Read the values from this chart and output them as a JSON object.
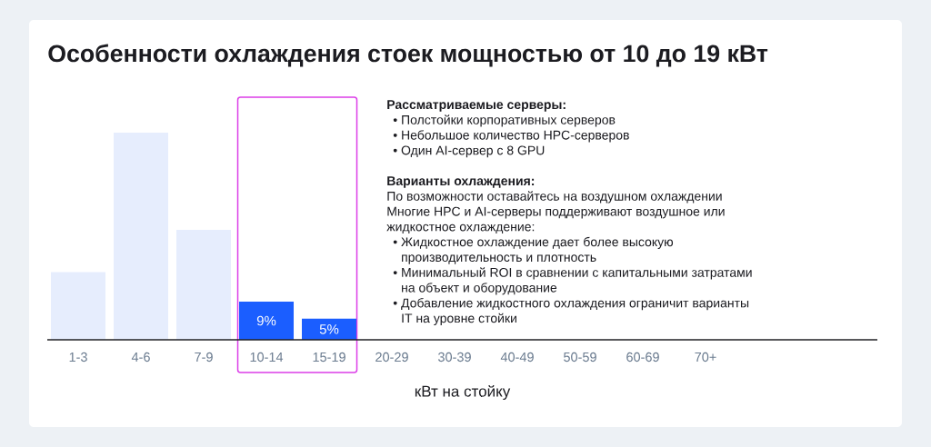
{
  "chart_data": {
    "type": "bar",
    "title": "Особенности охлаждения стоек мощностью от 10 до 19 кВт",
    "xlabel": "кВт на стойку",
    "categories": [
      "1-3",
      "4-6",
      "7-9",
      "10-14",
      "15-19",
      "20-29",
      "30-39",
      "40-49",
      "50-59",
      "60-69",
      "70+"
    ],
    "values": [
      16,
      49,
      26,
      9,
      5,
      null,
      null,
      null,
      null,
      null,
      null
    ],
    "colors": [
      "#e6edfd",
      "#e6edfd",
      "#e6edfd",
      "#1b5eff",
      "#1b5eff",
      null,
      null,
      null,
      null,
      null,
      null
    ],
    "value_labels": [
      null,
      null,
      null,
      "9%",
      "5%",
      null,
      null,
      null,
      null,
      null,
      null
    ],
    "bands": [
      {
        "axis": "x",
        "from": "10-14",
        "to": "15-19",
        "color": "#dc3ee8"
      }
    ],
    "annotations": [
      "**Рассматриваемые серверы:**",
      "• Полстойки корпоративных серверов",
      "• Небольшое количество HPC-серверов",
      "• Один AI-сервер с 8 GPU",
      "**Варианты охлаждения:**",
      "По возможности оставайтесь на воздушном охлаждении",
      "Многие HPC и AI-серверы поддерживают воздушное или жидкостное охлаждение:",
      "• Жидкостное охлаждение дает более высокую производительность и плотность",
      "• Минимальный ROI в сравнении с капитальными затратами на объект и оборудование",
      "• Добавление жидкостного охлаждения ограничит варианты IT на уровне стойки"
    ]
  }
}
